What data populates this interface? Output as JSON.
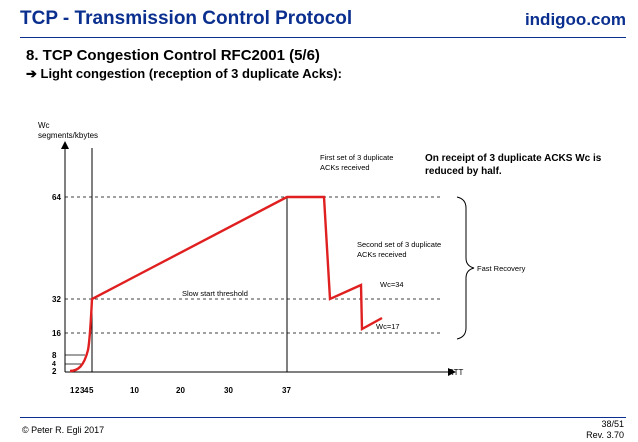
{
  "header": {
    "title": "TCP - Transmission Control Protocol",
    "brand": "indigoo.com"
  },
  "slide": {
    "heading": "8. TCP Congestion Control RFC2001 (5/6)",
    "subheading": "➔ Light congestion (reception of 3 duplicate Acks):"
  },
  "footer": {
    "copyright": "© Peter R. Egli 2017",
    "page": "38/51",
    "revision": "Rev. 3.70"
  },
  "colors": {
    "header_blue": "#0a2f8f",
    "curve_red": "#e02020"
  },
  "chart_data": {
    "type": "line",
    "ylabel_line1": "Wc",
    "ylabel_line2": "segments/kbytes",
    "xlabel": "RTT",
    "x_tick_labels": [
      "1",
      "2",
      "3",
      "4",
      "5",
      "10",
      "20",
      "30",
      "37"
    ],
    "y_tick_labels": [
      "2",
      "4",
      "8",
      "16",
      "32",
      "64"
    ],
    "reference_lines": [
      64,
      32,
      16
    ],
    "annotations": {
      "first_dup_line1": "First set of 3 duplicate",
      "first_dup_line2": "ACKs received",
      "second_dup_line1": "Second set of 3 duplicate",
      "second_dup_line2": "ACKs received",
      "receipt_note_line1": "On receipt of 3 duplicate ACKS Wc is",
      "receipt_note_line2": "reduced by half.",
      "slow_start": "Slow start threshold",
      "wc34": "Wc=34",
      "wc17": "Wc=17",
      "fast_recovery": "Fast Recovery"
    }
  }
}
